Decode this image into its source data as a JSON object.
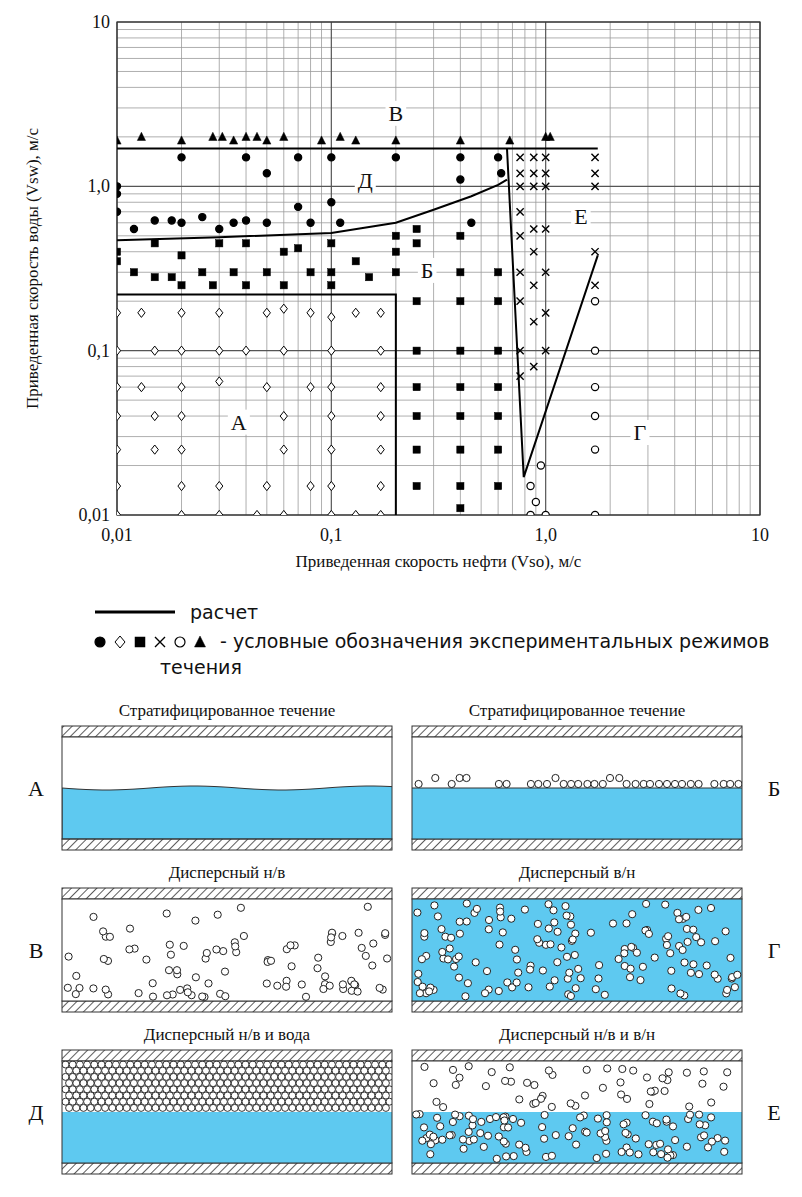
{
  "chart_data": {
    "type": "scatter",
    "x_label": "Приведенная скорость нефти (Vso), м/с",
    "y_label": "Приведенная скорость воды (Vsw), м/с",
    "xlim": [
      0.01,
      10
    ],
    "ylim": [
      0.01,
      10
    ],
    "xticks": [
      {
        "value": 0.01,
        "label": "0,01"
      },
      {
        "value": 0.1,
        "label": "0,1"
      },
      {
        "value": 1,
        "label": "1,0"
      },
      10
    ],
    "yticks": [
      {
        "value": 0.01,
        "label": "0,01"
      },
      {
        "value": 0.1,
        "label": "0,1"
      },
      {
        "value": 1,
        "label": "1,0"
      },
      10
    ],
    "log": true,
    "grid": true,
    "legend": "bottom",
    "legend_note": "- условные обозначения экспериментальных режимов течения",
    "annotations": [
      {
        "text": "В",
        "x": 0.2,
        "y": 2.8
      },
      {
        "text": "Д",
        "x": 0.144,
        "y": 1.1
      },
      {
        "text": "Е",
        "x": 1.46,
        "y": 0.66
      },
      {
        "text": "Б",
        "x": 0.28,
        "y": 0.31
      },
      {
        "text": "А",
        "x": 0.037,
        "y": 0.037
      },
      {
        "text": "Г",
        "x": 2.75,
        "y": 0.032
      }
    ],
    "series": [
      {
        "marker": "circle",
        "color": "#000000",
        "x": [
          0.01,
          0.01,
          0.01,
          0.012,
          0.015,
          0.018,
          0.02,
          0.02,
          0.025,
          0.03,
          0.035,
          0.04,
          0.04,
          0.05,
          0.05,
          0.07,
          0.07,
          0.08,
          0.1,
          0.1,
          0.11,
          0.2,
          0.4,
          0.4,
          0.45,
          0.6,
          0.62
        ],
        "values": [
          1.0,
          0.9,
          0.7,
          0.55,
          0.62,
          0.62,
          1.5,
          0.6,
          0.65,
          0.55,
          0.6,
          0.62,
          1.5,
          1.2,
          0.6,
          1.5,
          0.75,
          0.6,
          1.5,
          0.8,
          0.6,
          1.5,
          1.5,
          1.1,
          0.6,
          1.5,
          1.2
        ]
      },
      {
        "marker": "diamond_open",
        "color": "#000000",
        "x": [
          0.01,
          0.013,
          0.02,
          0.03,
          0.05,
          0.06,
          0.08,
          0.1,
          0.13,
          0.17,
          0.01,
          0.015,
          0.02,
          0.03,
          0.04,
          0.06,
          0.1,
          0.17,
          0.01,
          0.013,
          0.02,
          0.03,
          0.05,
          0.08,
          0.1,
          0.17,
          0.01,
          0.015,
          0.02,
          0.06,
          0.1,
          0.17,
          0.01,
          0.015,
          0.02,
          0.06,
          0.1,
          0.17,
          0.01,
          0.02,
          0.03,
          0.05,
          0.08,
          0.1,
          0.17,
          0.01,
          0.02,
          0.03,
          0.045,
          0.06,
          0.1,
          0.13,
          0.17
        ],
        "values": [
          0.17,
          0.17,
          0.17,
          0.17,
          0.17,
          0.18,
          0.17,
          0.16,
          0.17,
          0.17,
          0.1,
          0.1,
          0.1,
          0.1,
          0.1,
          0.1,
          0.1,
          0.1,
          0.06,
          0.06,
          0.06,
          0.065,
          0.06,
          0.06,
          0.06,
          0.06,
          0.04,
          0.04,
          0.04,
          0.04,
          0.04,
          0.04,
          0.025,
          0.025,
          0.025,
          0.025,
          0.025,
          0.025,
          0.015,
          0.015,
          0.015,
          0.015,
          0.015,
          0.015,
          0.015,
          0.01,
          0.01,
          0.01,
          0.01,
          0.01,
          0.01,
          0.01,
          0.01
        ]
      },
      {
        "marker": "square",
        "color": "#000000",
        "x": [
          0.01,
          0.01,
          0.012,
          0.015,
          0.015,
          0.018,
          0.02,
          0.02,
          0.025,
          0.028,
          0.03,
          0.035,
          0.04,
          0.04,
          0.05,
          0.06,
          0.06,
          0.07,
          0.08,
          0.1,
          0.1,
          0.1,
          0.13,
          0.15,
          0.2,
          0.2,
          0.2,
          0.25,
          0.25,
          0.25,
          0.25,
          0.25,
          0.25,
          0.25,
          0.25,
          0.4,
          0.4,
          0.4,
          0.4,
          0.4,
          0.4,
          0.4,
          0.4,
          0.4,
          0.6,
          0.6,
          0.6,
          0.6,
          0.6,
          0.6,
          0.6
        ],
        "values": [
          0.4,
          0.35,
          0.3,
          0.45,
          0.28,
          0.28,
          0.38,
          0.25,
          0.3,
          0.25,
          0.45,
          0.3,
          0.45,
          0.25,
          0.3,
          0.4,
          0.25,
          0.42,
          0.3,
          0.45,
          0.3,
          0.25,
          0.35,
          0.28,
          0.5,
          0.4,
          0.3,
          0.55,
          0.45,
          0.2,
          0.1,
          0.06,
          0.04,
          0.025,
          0.015,
          0.5,
          0.3,
          0.2,
          0.1,
          0.06,
          0.04,
          0.025,
          0.015,
          0.011,
          0.3,
          0.2,
          0.1,
          0.06,
          0.04,
          0.025,
          0.015
        ]
      },
      {
        "marker": "x",
        "color": "#000000",
        "x": [
          0.76,
          0.76,
          0.76,
          0.76,
          0.76,
          0.76,
          0.76,
          0.76,
          0.76,
          0.88,
          0.88,
          0.88,
          0.88,
          0.88,
          0.88,
          0.88,
          0.88,
          1.0,
          1.0,
          1.0,
          1.0,
          1.0,
          1.0,
          1.0,
          1.7,
          1.7,
          1.7,
          1.7,
          1.7
        ],
        "values": [
          1.5,
          1.2,
          1.0,
          0.7,
          0.5,
          0.3,
          0.2,
          0.1,
          0.07,
          1.5,
          1.2,
          1.0,
          0.55,
          0.4,
          0.25,
          0.15,
          0.08,
          1.5,
          1.2,
          1.0,
          0.55,
          0.3,
          0.17,
          0.1,
          1.5,
          1.2,
          1.0,
          0.4,
          0.25
        ]
      },
      {
        "marker": "circle_open",
        "color": "#000000",
        "x": [
          0.85,
          0.85,
          0.9,
          0.95,
          1.0,
          1.7,
          1.7,
          1.7,
          1.7,
          1.7,
          1.7
        ],
        "values": [
          0.01,
          0.015,
          0.012,
          0.02,
          0.01,
          0.2,
          0.1,
          0.06,
          0.04,
          0.025,
          0.01
        ]
      },
      {
        "marker": "triangle",
        "color": "#000000",
        "x": [
          0.01,
          0.013,
          0.02,
          0.028,
          0.031,
          0.035,
          0.04,
          0.045,
          0.05,
          0.06,
          0.09,
          0.11,
          0.13,
          0.2,
          0.4,
          0.68,
          1.0,
          1.05
        ],
        "values": [
          1.9,
          2.0,
          1.9,
          2.0,
          2.0,
          1.9,
          2.0,
          2.0,
          1.9,
          2.0,
          1.9,
          2.0,
          1.9,
          1.9,
          1.9,
          1.9,
          2.0,
          2.0
        ]
      },
      {
        "name": "расчет",
        "type": "line",
        "line_style": "solid",
        "color": "#000000",
        "x": [
          0.01,
          1.75,
          null,
          0.01,
          0.03,
          0.1,
          0.2,
          0.3,
          0.45,
          0.6,
          0.66,
          null,
          0.66,
          0.79,
          null,
          0.79,
          1.75,
          null,
          0.01,
          0.2,
          0.2
        ],
        "values": [
          1.7,
          1.7,
          null,
          0.47,
          0.49,
          0.52,
          0.6,
          0.72,
          0.87,
          1.02,
          1.1,
          null,
          1.7,
          0.017,
          null,
          0.017,
          0.38,
          null,
          0.22,
          0.22,
          0.01
        ]
      }
    ]
  },
  "diagrams": [
    {
      "letter": "А",
      "title": "Стратифицированное течение"
    },
    {
      "letter": "Б",
      "title": "Стратифицированное течение"
    },
    {
      "letter": "В",
      "title": "Дисперсный н/в"
    },
    {
      "letter": "Г",
      "title": "Дисперсный в/н"
    },
    {
      "letter": "Д",
      "title": "Дисперсный н/в и вода"
    },
    {
      "letter": "Е",
      "title": "Дисперсный н/в и в/н"
    }
  ]
}
